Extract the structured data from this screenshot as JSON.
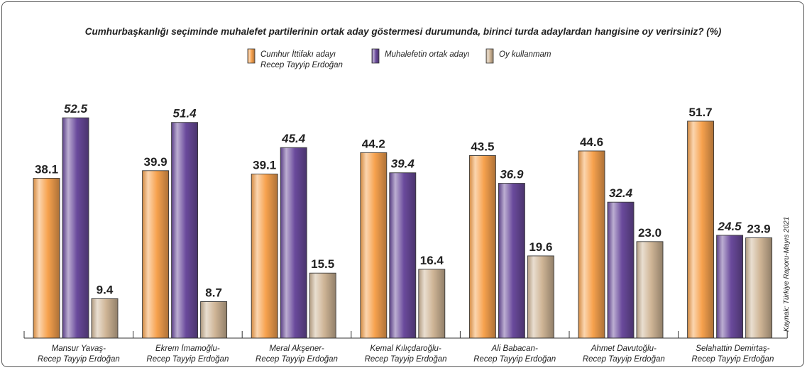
{
  "chart_data": {
    "type": "bar",
    "title": "Cumhurbaşkanlığı seçiminde muhalefet partilerinin ortak aday göstermesi durumunda, birinci turda adaylardan hangisine oy verirsiniz? (%)",
    "categories": [
      [
        "Mansur Yavaş-",
        "Recep Tayyip Erdoğan"
      ],
      [
        "Ekrem İmamoğlu-",
        "Recep Tayyip Erdoğan"
      ],
      [
        "Meral Akşener-",
        "Recep Tayyip Erdoğan"
      ],
      [
        "Kemal Kılıçdaroğlu-",
        "Recep Tayyip Erdoğan"
      ],
      [
        "Ali Babacan-",
        "Recep Tayyip Erdoğan"
      ],
      [
        "Ahmet Davutoğlu-",
        "Recep Tayyip Erdoğan"
      ],
      [
        "Selahattin Demirtaş-",
        "Recep Tayyip Erdoğan"
      ]
    ],
    "series": [
      {
        "name": [
          "Cumhur İttifakı adayı",
          "Recep Tayyip Erdoğan"
        ],
        "color": "#f7a24e",
        "values": [
          38.1,
          39.9,
          39.1,
          44.2,
          43.5,
          44.6,
          51.7
        ]
      },
      {
        "name": [
          "Muhalefetin ortak adayı"
        ],
        "color": "#6a4a9c",
        "values": [
          52.5,
          51.4,
          45.4,
          39.4,
          36.9,
          32.4,
          24.5
        ]
      },
      {
        "name": [
          "Oy kullanmam"
        ],
        "color": "#cfb596",
        "values": [
          9.4,
          8.7,
          15.5,
          16.4,
          19.6,
          23.0,
          23.9
        ]
      }
    ],
    "ylim": [
      0,
      60
    ],
    "xlabel": "",
    "ylabel": "",
    "source": "Kaynak: Türkiye Raporu-Mayıs 2021"
  }
}
